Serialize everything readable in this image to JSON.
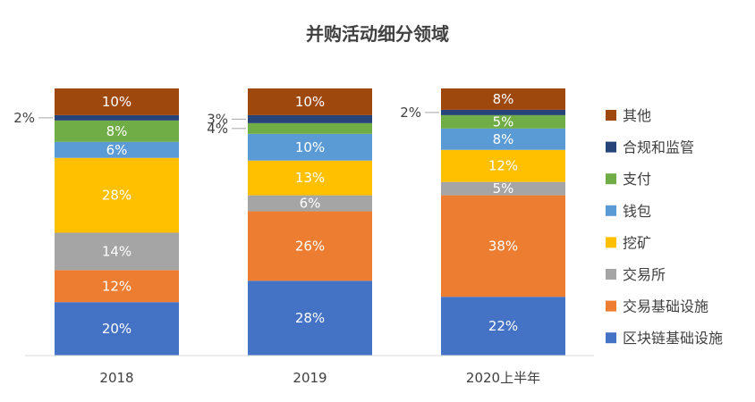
{
  "chart_data": {
    "type": "bar",
    "stacked": true,
    "title": "并购活动细分领域",
    "categories": [
      "2018",
      "2019",
      "2020上半年"
    ],
    "series": [
      {
        "name": "区块链基础设施",
        "color": "#4472C4",
        "values": [
          20,
          28,
          22
        ]
      },
      {
        "name": "交易基础设施",
        "color": "#ED7D31",
        "values": [
          12,
          26,
          38
        ]
      },
      {
        "name": "交易所",
        "color": "#A5A5A5",
        "values": [
          14,
          6,
          5
        ]
      },
      {
        "name": "挖矿",
        "color": "#FFC000",
        "values": [
          28,
          13,
          12
        ]
      },
      {
        "name": "钱包",
        "color": "#5B9BD5",
        "values": [
          6,
          10,
          8
        ]
      },
      {
        "name": "支付",
        "color": "#70AD47",
        "values": [
          8,
          4,
          5
        ]
      },
      {
        "name": "合规和监管",
        "color": "#264478",
        "values": [
          2,
          3,
          2
        ]
      },
      {
        "name": "其他",
        "color": "#9E480E",
        "values": [
          10,
          10,
          8
        ]
      }
    ],
    "value_suffix": "%",
    "ylim": [
      0,
      100
    ],
    "grid": false,
    "legend": "right"
  }
}
